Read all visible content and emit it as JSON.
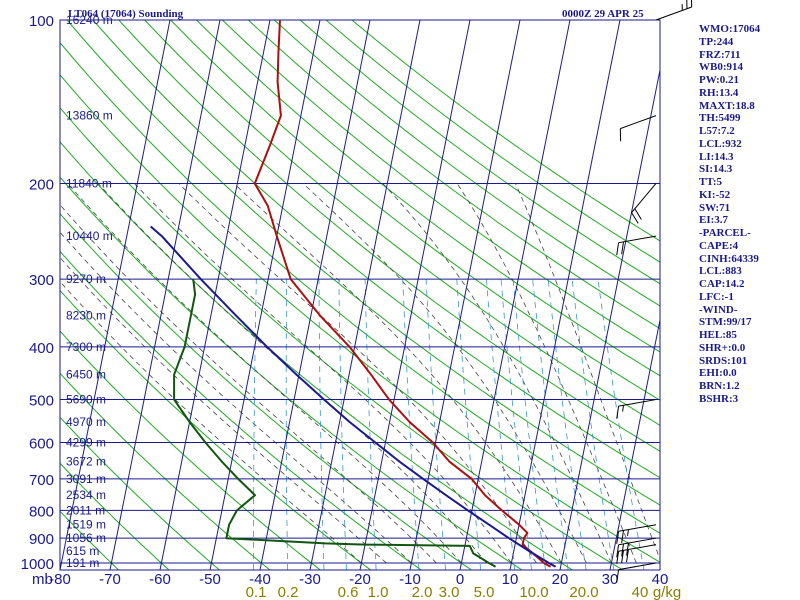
{
  "header": {
    "station": "LT064 (17064) Sounding",
    "time": "0000Z 29 APR 25"
  },
  "indices": [
    "WMO:17064",
    "TP:244",
    "FRZ:711",
    "WB0:914",
    "PW:0.21",
    "RH:13.4",
    "MAXT:18.8",
    "TH:5499",
    "L57:7.2",
    "LCL:932",
    "LI:14.3",
    "SI:14.3",
    "TT:5",
    "KI:-52",
    "SW:71",
    "EI:3.7",
    "-PARCEL-",
    "CAPE:4",
    "CINH:64339",
    "LCL:883",
    "CAP:14.2",
    "LFC:-1",
    "-WIND-",
    "STM:99/17",
    "HEL:85",
    "SHR+:0.0",
    "SRDS:101",
    "EHI:0.0",
    "BRN:1.2",
    "BSHR:3"
  ],
  "colors": {
    "grid": "#1a1a8c",
    "isotherm": "#1a1a8c",
    "dry_adiabat": "#22aa22",
    "moist_adiabat": "#444444",
    "mixing_ratio": "#3399cc",
    "temperature": "#aa1111",
    "dewpoint": "#115511",
    "parcel": "#1a1a8c",
    "mixing_labels": "#8b7d00",
    "text": "#1a1a8c"
  },
  "chart_data": {
    "type": "line",
    "title": "LT064 (17064) Sounding",
    "subtitle": "0000Z 29 APR 25",
    "x_unit_label": "mb",
    "x_ticks": [
      -80,
      -70,
      -60,
      -50,
      -40,
      -30,
      -20,
      -10,
      0,
      10,
      20,
      30,
      40
    ],
    "x_tick_labels": [
      "-80",
      "-70",
      "-60",
      "-50",
      "-40",
      "-30",
      "-20",
      "-10",
      "0",
      "10",
      "20",
      "30",
      "40"
    ],
    "xlim": [
      -80,
      40
    ],
    "y_scale": "log",
    "ylim": [
      1030,
      100
    ],
    "pressure_levels": [
      100,
      200,
      300,
      400,
      500,
      600,
      700,
      800,
      900,
      1000
    ],
    "pressure_labels": [
      "100",
      "200",
      "300",
      "400",
      "500",
      "600",
      "700",
      "800",
      "900",
      "1000"
    ],
    "height_labels": [
      {
        "p": 100,
        "text": "16240 m"
      },
      {
        "p": 150,
        "text": "13860 m"
      },
      {
        "p": 200,
        "text": "11840 m"
      },
      {
        "p": 250,
        "text": "10440 m"
      },
      {
        "p": 300,
        "text": "9270 m"
      },
      {
        "p": 350,
        "text": "8230 m"
      },
      {
        "p": 400,
        "text": "7300 m"
      },
      {
        "p": 450,
        "text": "6450 m"
      },
      {
        "p": 500,
        "text": "5690 m"
      },
      {
        "p": 550,
        "text": "4970 m"
      },
      {
        "p": 600,
        "text": "4299 m"
      },
      {
        "p": 650,
        "text": "3672 m"
      },
      {
        "p": 700,
        "text": "3091 m"
      },
      {
        "p": 750,
        "text": "2534 m"
      },
      {
        "p": 800,
        "text": "2011 m"
      },
      {
        "p": 850,
        "text": "1519 m"
      },
      {
        "p": 900,
        "text": "1056 m"
      },
      {
        "p": 950,
        "text": "615 m"
      },
      {
        "p": 1000,
        "text": "191 m"
      }
    ],
    "mixing_ratio_labels": [
      "0.1",
      "0.2",
      "0.6",
      "1.0",
      "2.0",
      "3.0",
      "5.0",
      "10.0",
      "20.0",
      "40",
      "g/kg"
    ],
    "series": [
      {
        "key": "temperature",
        "points": [
          [
            1016,
            18
          ],
          [
            1000,
            16.5
          ],
          [
            970,
            14.6
          ],
          [
            925,
            11.5
          ],
          [
            900,
            11.5
          ],
          [
            880,
            12
          ],
          [
            850,
            10
          ],
          [
            800,
            6
          ],
          [
            750,
            2
          ],
          [
            700,
            -1.3
          ],
          [
            650,
            -6.5
          ],
          [
            600,
            -10.5
          ],
          [
            550,
            -16
          ],
          [
            500,
            -21
          ],
          [
            450,
            -25.6
          ],
          [
            400,
            -31
          ],
          [
            350,
            -38.2
          ],
          [
            300,
            -45.5
          ],
          [
            250,
            -50
          ],
          [
            220,
            -53
          ],
          [
            200,
            -56.5
          ],
          [
            170,
            -55
          ],
          [
            150,
            -54
          ],
          [
            130,
            -56
          ],
          [
            115,
            -57
          ],
          [
            100,
            -58
          ]
        ]
      },
      {
        "key": "dewpoint",
        "points": [
          [
            1016,
            7
          ],
          [
            1000,
            5.5
          ],
          [
            960,
            2
          ],
          [
            930,
            1
          ],
          [
            925,
            -20
          ],
          [
            920,
            -28
          ],
          [
            900,
            -48
          ],
          [
            850,
            -48
          ],
          [
            800,
            -47
          ],
          [
            750,
            -44
          ],
          [
            700,
            -48
          ],
          [
            650,
            -52
          ],
          [
            600,
            -56
          ],
          [
            550,
            -60
          ],
          [
            500,
            -64
          ],
          [
            450,
            -65
          ],
          [
            400,
            -64
          ],
          [
            350,
            -64
          ],
          [
            320,
            -64
          ],
          [
            300,
            -65
          ]
        ]
      },
      {
        "key": "parcel",
        "points": [
          [
            1016,
            19
          ],
          [
            1000,
            17.5
          ],
          [
            950,
            13
          ],
          [
            900,
            8.5
          ],
          [
            850,
            4
          ],
          [
            800,
            -0.8
          ],
          [
            750,
            -5.8
          ],
          [
            700,
            -11
          ],
          [
            650,
            -16.5
          ],
          [
            600,
            -22
          ],
          [
            550,
            -28
          ],
          [
            500,
            -34
          ],
          [
            450,
            -40.5
          ],
          [
            400,
            -47.5
          ],
          [
            350,
            -55
          ],
          [
            300,
            -63.5
          ],
          [
            250,
            -73
          ],
          [
            240,
            -75.6
          ]
        ]
      }
    ],
    "winds": [
      {
        "p": 1000,
        "dir": 80,
        "spd": 10
      },
      {
        "p": 925,
        "dir": 80,
        "spd": 30
      },
      {
        "p": 900,
        "dir": 80,
        "spd": 30
      },
      {
        "p": 850,
        "dir": 80,
        "spd": 25
      },
      {
        "p": 500,
        "dir": 80,
        "spd": 15
      },
      {
        "p": 250,
        "dir": 80,
        "spd": 20
      },
      {
        "p": 200,
        "dir": 40,
        "spd": 20
      },
      {
        "p": 150,
        "dir": 70,
        "spd": 10
      },
      {
        "p": 100,
        "dir": 250,
        "spd": 25
      }
    ],
    "grid": true
  }
}
